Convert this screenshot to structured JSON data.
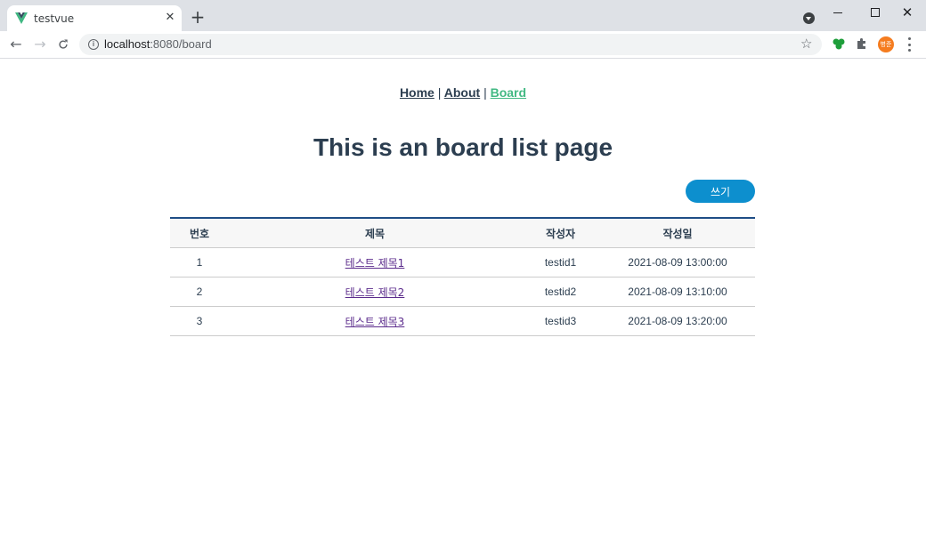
{
  "browser": {
    "tab_title": "testvue",
    "tab_close": "✕",
    "new_tab": "+",
    "url_host": "localhost",
    "url_rest": ":8080/board",
    "profile_initials": "병준",
    "icons": {
      "back": "arrow-left-icon",
      "forward": "arrow-right-icon",
      "reload": "reload-icon",
      "info": "info-icon",
      "star": "star-icon",
      "extension1": "clover-extension-icon",
      "extension2": "puzzle-icon",
      "menu": "menu-dots-icon"
    }
  },
  "nav": {
    "home": "Home",
    "about": "About",
    "board": "Board",
    "separator": "|",
    "active_color": "#42b983"
  },
  "page": {
    "title": "This is an board list page",
    "write_button": "쓰기",
    "button_color": "#0d8fce"
  },
  "table": {
    "headers": [
      "번호",
      "제목",
      "작성자",
      "작성일"
    ],
    "rows": [
      {
        "no": "1",
        "title": "테스트 제목1",
        "author": "testid1",
        "date": "2021-08-09 13:00:00"
      },
      {
        "no": "2",
        "title": "테스트 제목2",
        "author": "testid2",
        "date": "2021-08-09 13:10:00"
      },
      {
        "no": "3",
        "title": "테스트 제목3",
        "author": "testid3",
        "date": "2021-08-09 13:20:00"
      }
    ]
  }
}
